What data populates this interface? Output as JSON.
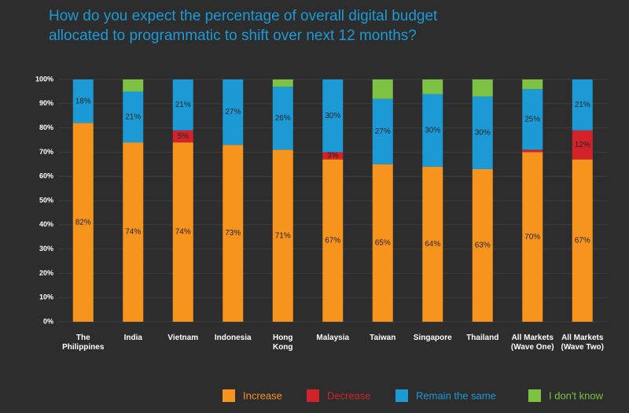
{
  "chart_data": {
    "type": "stacked_bar",
    "title": "How do you expect the percentage of overall digital budget\nallocated to programmatic to shift over next 12 months?",
    "categories": [
      "The\nPhilippines",
      "India",
      "Vietnam",
      "Indonesia",
      "Hong\nKong",
      "Malaysia",
      "Taiwan",
      "Singapore",
      "Thailand",
      "All Markets\n(Wave One)",
      "All Markets\n(Wave Two)"
    ],
    "series": [
      {
        "name": "Increase",
        "color": "#f7941d",
        "values": [
          82,
          74,
          74,
          73,
          71,
          67,
          65,
          64,
          63,
          70,
          67
        ],
        "value_labels": [
          "82%",
          "74%",
          "74%",
          "73%",
          "71%",
          "67%",
          "65%",
          "64%",
          "63%",
          "70%",
          "67%"
        ]
      },
      {
        "name": "Decrease",
        "color": "#d2232a",
        "values": [
          0,
          0,
          5,
          0,
          0,
          3,
          0,
          0,
          0,
          1,
          12
        ],
        "value_labels": [
          null,
          null,
          "5%",
          null,
          null,
          "3%",
          null,
          null,
          null,
          null,
          "12%"
        ]
      },
      {
        "name": "Remain the same",
        "color": "#1b9ad6",
        "values": [
          18,
          21,
          21,
          27,
          26,
          30,
          27,
          30,
          30,
          25,
          21
        ],
        "value_labels": [
          "18%",
          "21%",
          "21%",
          "27%",
          "26%",
          "30%",
          "27%",
          "30%",
          "30%",
          "25%",
          "21%"
        ]
      },
      {
        "name": "I don't know",
        "color": "#7dc242",
        "values": [
          0,
          5,
          0,
          0,
          3,
          0,
          8,
          6,
          7,
          4,
          0
        ],
        "value_labels": [
          null,
          null,
          null,
          null,
          null,
          null,
          null,
          null,
          null,
          null,
          null
        ]
      }
    ],
    "ylim": [
      0,
      100
    ],
    "yticks": [
      {
        "value": 0,
        "label": "0%"
      },
      {
        "value": 10,
        "label": "10%"
      },
      {
        "value": 20,
        "label": "20%"
      },
      {
        "value": 30,
        "label": "30%"
      },
      {
        "value": 40,
        "label": "40%"
      },
      {
        "value": 50,
        "label": "50%"
      },
      {
        "value": 60,
        "label": "60%"
      },
      {
        "value": 70,
        "label": "70%"
      },
      {
        "value": 80,
        "label": "80%"
      },
      {
        "value": 90,
        "label": "90%"
      },
      {
        "value": 100,
        "label": "100%"
      }
    ],
    "grid": true
  }
}
